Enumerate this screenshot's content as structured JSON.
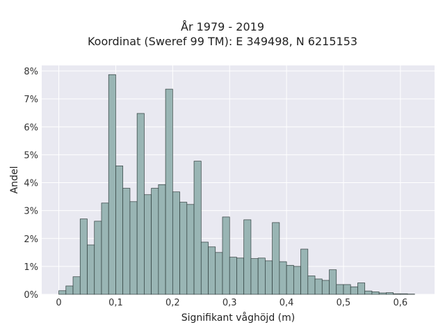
{
  "chart_data": {
    "type": "bar",
    "title_line1": "År 1979 - 2019",
    "title_line2": "Koordinat (Sweref 99 TM): E 349498, N 6215153",
    "xlabel": "Signifikant våghöjd (m)",
    "ylabel": "Andel",
    "xlim": [
      -0.03,
      0.66
    ],
    "ylim": [
      0,
      8.2
    ],
    "x_ticks": [
      0,
      0.1,
      0.2,
      0.3,
      0.4,
      0.5,
      0.6
    ],
    "x_tick_labels": [
      "0",
      "0,1",
      "0,2",
      "0,3",
      "0,4",
      "0,5",
      "0,6"
    ],
    "y_ticks": [
      0,
      1,
      2,
      3,
      4,
      5,
      6,
      7,
      8
    ],
    "y_tick_labels": [
      "0%",
      "1%",
      "2%",
      "3%",
      "4%",
      "5%",
      "6%",
      "7%",
      "8%"
    ],
    "bin_width": 0.0125,
    "bin_start": 0,
    "values": [
      0.13,
      0.3,
      0.63,
      2.7,
      1.77,
      2.62,
      3.27,
      7.87,
      4.6,
      3.8,
      3.32,
      6.48,
      3.57,
      3.8,
      3.93,
      7.35,
      3.67,
      3.3,
      3.22,
      4.77,
      1.87,
      1.7,
      1.5,
      2.77,
      1.33,
      1.3,
      2.67,
      1.28,
      1.3,
      1.2,
      2.57,
      1.17,
      1.04,
      1.0,
      1.62,
      0.66,
      0.55,
      0.5,
      0.88,
      0.35,
      0.35,
      0.27,
      0.41,
      0.12,
      0.09,
      0.05,
      0.06,
      0.02,
      0.02,
      0.01
    ],
    "grid": true,
    "legend": false,
    "colors": {
      "bar_fill": "#99b5b4",
      "bar_edge": "#2f3d3c",
      "plot_bg": "#e9e9f1",
      "grid": "#ffffff"
    }
  }
}
